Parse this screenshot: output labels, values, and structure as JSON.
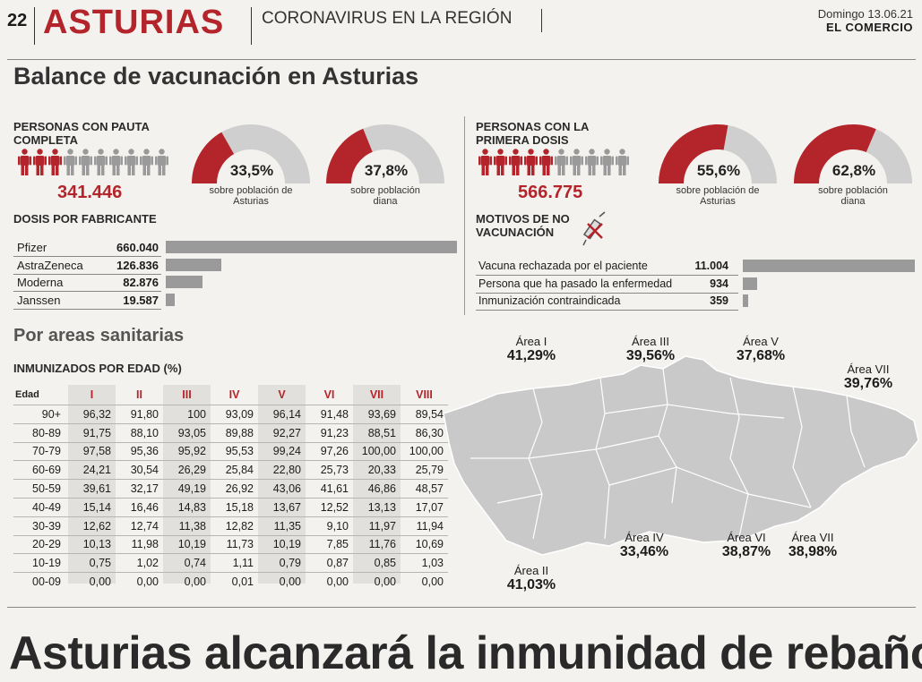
{
  "header": {
    "page_number": "22",
    "section": "ASTURIAS",
    "subsection": "CORONAVIRUS EN LA REGIÓN",
    "date": "Domingo 13.06.21",
    "newspaper": "EL COMERCIO"
  },
  "title": "Balance de vacunación en Asturias",
  "pauta_completa": {
    "label": "PERSONAS CON PAUTA COMPLETA",
    "count": "341.446",
    "people_highlighted": 3,
    "people_total": 10,
    "gauges": [
      {
        "value": "33,5%",
        "fraction": 0.335,
        "caption": "sobre población de Asturias"
      },
      {
        "value": "37,8%",
        "fraction": 0.378,
        "caption": "sobre población diana"
      }
    ]
  },
  "primera_dosis": {
    "label": "PERSONAS CON LA PRIMERA DOSIS",
    "count": "566.775",
    "people_highlighted": 5,
    "people_total": 10,
    "gauges": [
      {
        "value": "55,6%",
        "fraction": 0.556,
        "caption": "sobre población de Asturias"
      },
      {
        "value": "62,8%",
        "fraction": 0.628,
        "caption": "sobre población diana"
      }
    ]
  },
  "dosis_fabricante": {
    "label": "DOSIS POR FABRICANTE",
    "rows": [
      {
        "name": "Pfizer",
        "value": "660.040",
        "num": 660040
      },
      {
        "name": "AstraZeneca",
        "value": "126.836",
        "num": 126836
      },
      {
        "name": "Moderna",
        "value": "82.876",
        "num": 82876
      },
      {
        "name": "Janssen",
        "value": "19.587",
        "num": 19587
      }
    ]
  },
  "no_vacunacion": {
    "label": "MOTIVOS DE NO VACUNACIÓN",
    "rows": [
      {
        "name": "Vacuna rechazada por el paciente",
        "value": "11.004",
        "num": 11004
      },
      {
        "name": "Persona que ha pasado la enfermedad",
        "value": "934",
        "num": 934
      },
      {
        "name": "Inmunización contraindicada",
        "value": "359",
        "num": 359
      }
    ]
  },
  "areas_title": "Por areas sanitarias",
  "edad_table": {
    "label": "INMUNIZADOS POR EDAD (%)",
    "col_edad": "Edad",
    "columns": [
      "I",
      "II",
      "III",
      "IV",
      "V",
      "VI",
      "VII",
      "VIII"
    ],
    "rows": [
      {
        "age": "90+",
        "vals": [
          "96,32",
          "91,80",
          "100",
          "93,09",
          "96,14",
          "91,48",
          "93,69",
          "89,54"
        ]
      },
      {
        "age": "80-89",
        "vals": [
          "91,75",
          "88,10",
          "93,05",
          "89,88",
          "92,27",
          "91,23",
          "88,51",
          "86,30"
        ]
      },
      {
        "age": "70-79",
        "vals": [
          "97,58",
          "95,36",
          "95,92",
          "95,53",
          "99,24",
          "97,26",
          "100,00",
          "100,00"
        ]
      },
      {
        "age": "60-69",
        "vals": [
          "24,21",
          "30,54",
          "26,29",
          "25,84",
          "22,80",
          "25,73",
          "20,33",
          "25,79"
        ]
      },
      {
        "age": "50-59",
        "vals": [
          "39,61",
          "32,17",
          "49,19",
          "26,92",
          "43,06",
          "41,61",
          "46,86",
          "48,57"
        ]
      },
      {
        "age": "40-49",
        "vals": [
          "15,14",
          "16,46",
          "14,83",
          "15,18",
          "13,67",
          "12,52",
          "13,13",
          "17,07"
        ]
      },
      {
        "age": "30-39",
        "vals": [
          "12,62",
          "12,74",
          "11,38",
          "12,82",
          "11,35",
          "9,10",
          "11,97",
          "11,94"
        ]
      },
      {
        "age": "20-29",
        "vals": [
          "10,13",
          "11,98",
          "10,19",
          "11,73",
          "10,19",
          "7,85",
          "11,76",
          "10,69"
        ]
      },
      {
        "age": "10-19",
        "vals": [
          "0,75",
          "1,02",
          "0,74",
          "1,11",
          "0,79",
          "0,87",
          "0,85",
          "1,03"
        ]
      },
      {
        "age": "00-09",
        "vals": [
          "0,00",
          "0,00",
          "0,00",
          "0,01",
          "0,00",
          "0,00",
          "0,00",
          "0,00"
        ]
      }
    ]
  },
  "map_areas": [
    {
      "name": "Área I",
      "value": "41,29%"
    },
    {
      "name": "Área III",
      "value": "39,56%"
    },
    {
      "name": "Área V",
      "value": "37,68%"
    },
    {
      "name": "Área VII",
      "value": "39,76%"
    },
    {
      "name": "Área IV",
      "value": "33,46%"
    },
    {
      "name": "Área VI",
      "value": "38,87%"
    },
    {
      "name": "Área VII",
      "value": "38,98%"
    },
    {
      "name": "Área II",
      "value": "41,03%"
    }
  ],
  "headline": "Asturias alcanzará la inmunidad de rebaño",
  "colors": {
    "red": "#b3242b",
    "gray": "#9a9a9a",
    "map": "#c9c9c9"
  }
}
